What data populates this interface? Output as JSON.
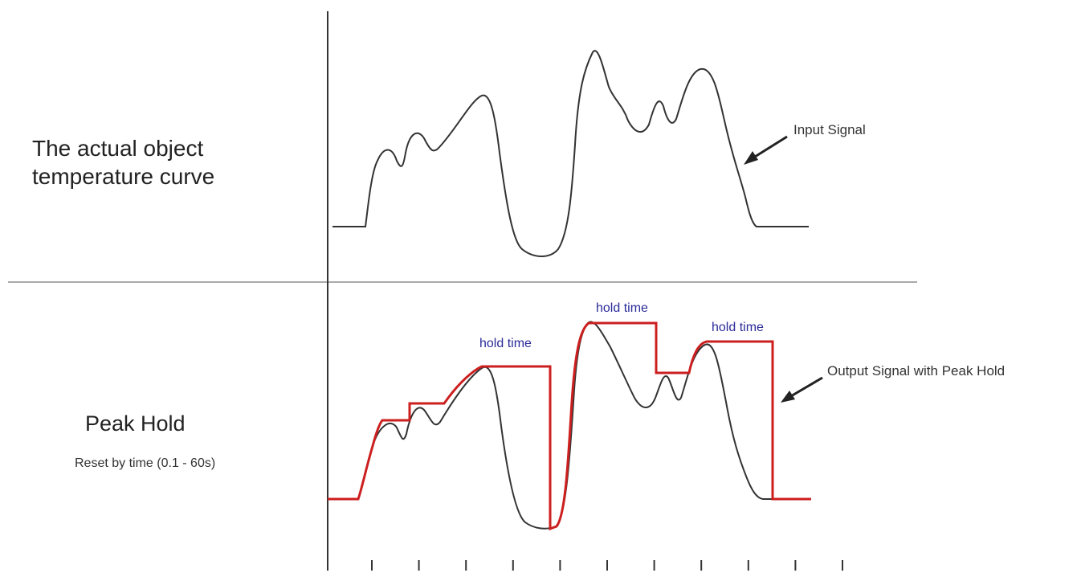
{
  "colors": {
    "curve": "#333333",
    "peak_hold": "#cc1f1f",
    "hold_label": "#2b2b9a",
    "axis": "#333333",
    "divider": "#aaaaaa"
  },
  "top_panel": {
    "label_line1": "The actual object",
    "label_line2": "temperature curve",
    "annotation": "Input Signal"
  },
  "bottom_panel": {
    "title": "Peak Hold",
    "subtitle": "Reset by time (0.1 - 60s)",
    "annotation": "Output Signal with Peak Hold",
    "hold_labels": [
      "hold time",
      "hold time",
      "hold time"
    ]
  },
  "time_axis": {
    "tick_count": 11
  }
}
